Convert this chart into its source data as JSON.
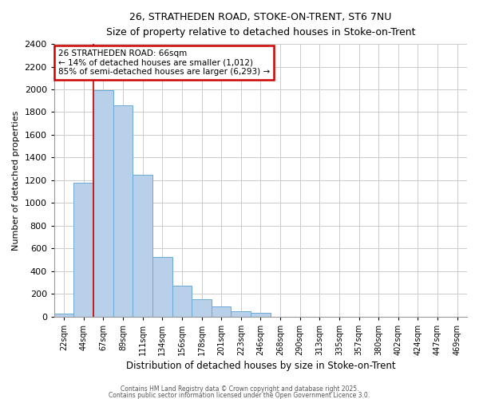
{
  "title1": "26, STRATHEDEN ROAD, STOKE-ON-TRENT, ST6 7NU",
  "title2": "Size of property relative to detached houses in Stoke-on-Trent",
  "xlabel": "Distribution of detached houses by size in Stoke-on-Trent",
  "ylabel": "Number of detached properties",
  "bar_values": [
    25,
    1175,
    1990,
    1860,
    1250,
    525,
    275,
    155,
    90,
    45,
    35,
    0,
    0,
    0,
    0,
    0,
    0,
    0,
    0,
    0,
    0
  ],
  "bin_labels": [
    "22sqm",
    "44sqm",
    "67sqm",
    "89sqm",
    "111sqm",
    "134sqm",
    "156sqm",
    "178sqm",
    "201sqm",
    "223sqm",
    "246sqm",
    "268sqm",
    "290sqm",
    "313sqm",
    "335sqm",
    "357sqm",
    "380sqm",
    "402sqm",
    "424sqm",
    "447sqm",
    "469sqm"
  ],
  "bar_color": "#b8d0ea",
  "bar_edge_color": "#6aaad4",
  "red_line_bin_index": 2,
  "annotation_line1": "26 STRATHEDEN ROAD: 66sqm",
  "annotation_line2": "← 14% of detached houses are smaller (1,012)",
  "annotation_line3": "85% of semi-detached houses are larger (6,293) →",
  "annotation_box_color": "#ffffff",
  "annotation_box_edge": "#cc0000",
  "ylim": [
    0,
    2400
  ],
  "yticks": [
    0,
    200,
    400,
    600,
    800,
    1000,
    1200,
    1400,
    1600,
    1800,
    2000,
    2200,
    2400
  ],
  "footer1": "Contains HM Land Registry data © Crown copyright and database right 2025.",
  "footer2": "Contains public sector information licensed under the Open Government Licence 3.0.",
  "bg_color": "#ffffff",
  "plot_bg_color": "#ffffff",
  "grid_color": "#cccccc"
}
